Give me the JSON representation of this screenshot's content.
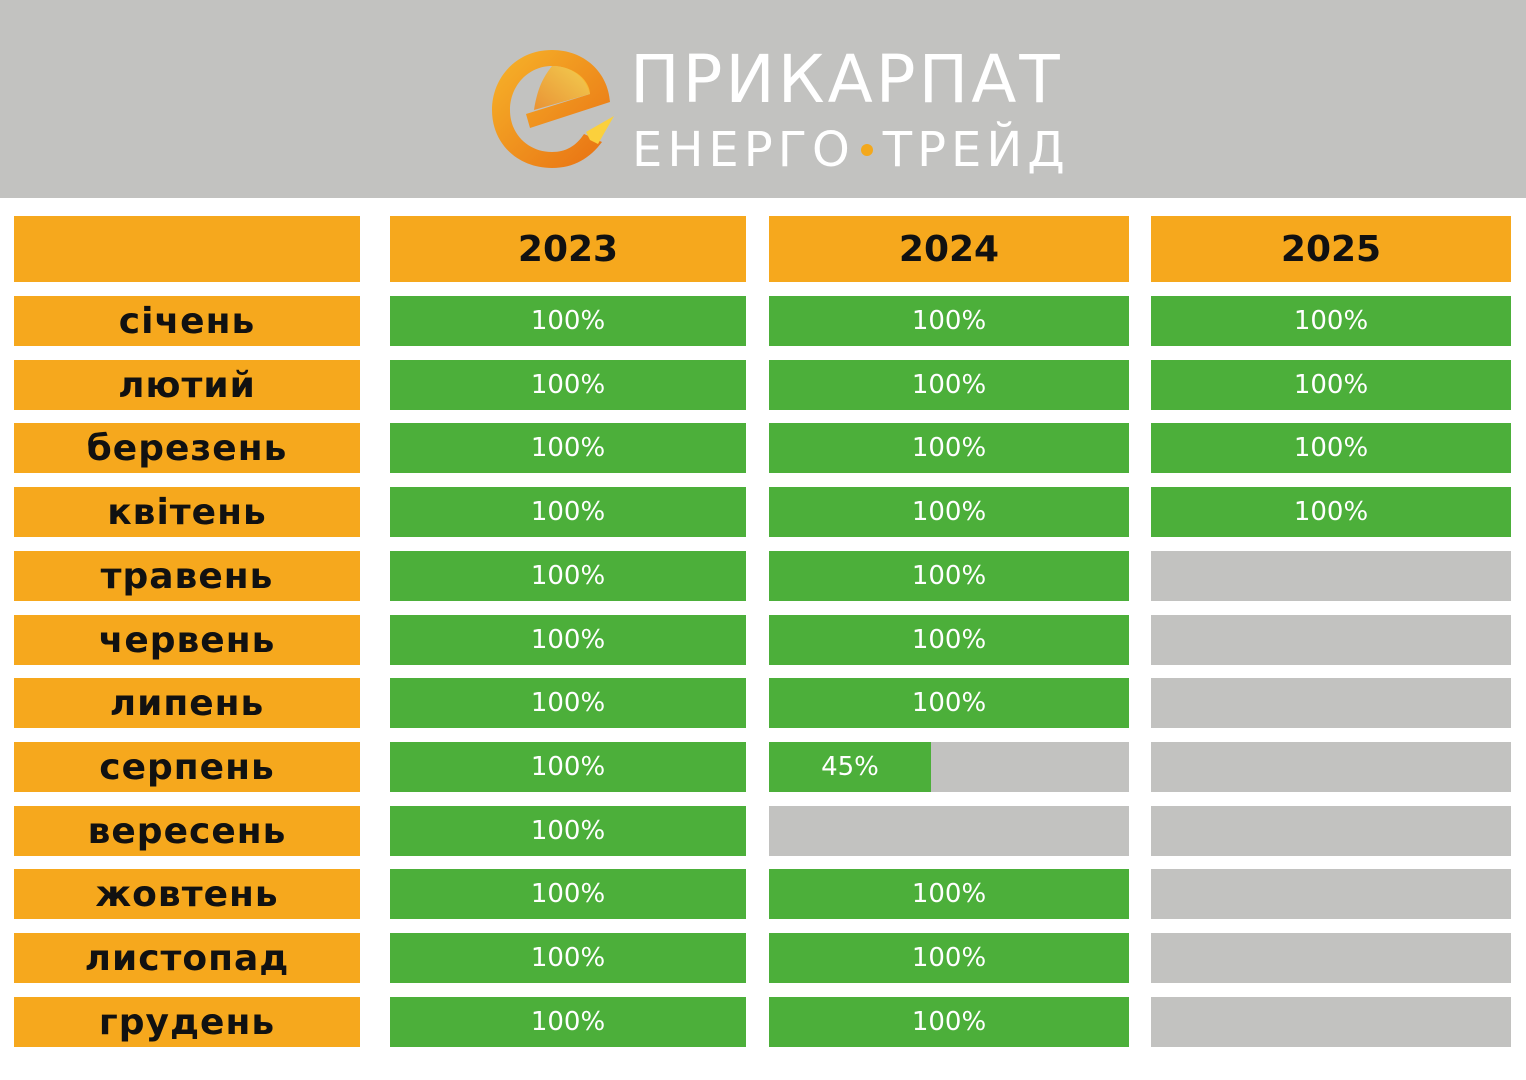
{
  "brand": {
    "line1": "ПРИКАРПАТ",
    "line2_a": "ЕНЕРГО",
    "line2_b": "ТРЕЙД",
    "colors": {
      "orange": "#f6a81d",
      "green": "#4caf3a",
      "grey": "#c2c2c0"
    }
  },
  "chart_data": {
    "type": "table",
    "columns": [
      "2023",
      "2024",
      "2025"
    ],
    "rows": [
      {
        "month": "січень",
        "values": [
          {
            "label": "100%",
            "fill": 100
          },
          {
            "label": "100%",
            "fill": 100
          },
          {
            "label": "100%",
            "fill": 100
          }
        ]
      },
      {
        "month": "лютий",
        "values": [
          {
            "label": "100%",
            "fill": 100
          },
          {
            "label": "100%",
            "fill": 100
          },
          {
            "label": "100%",
            "fill": 100
          }
        ]
      },
      {
        "month": "березень",
        "values": [
          {
            "label": "100%",
            "fill": 100
          },
          {
            "label": "100%",
            "fill": 100
          },
          {
            "label": "100%",
            "fill": 100
          }
        ]
      },
      {
        "month": "квітень",
        "values": [
          {
            "label": "100%",
            "fill": 100
          },
          {
            "label": "100%",
            "fill": 100
          },
          {
            "label": "100%",
            "fill": 100
          }
        ]
      },
      {
        "month": "травень",
        "values": [
          {
            "label": "100%",
            "fill": 100
          },
          {
            "label": "100%",
            "fill": 100
          },
          {
            "label": "",
            "fill": 0
          }
        ]
      },
      {
        "month": "червень",
        "values": [
          {
            "label": "100%",
            "fill": 100
          },
          {
            "label": "100%",
            "fill": 100
          },
          {
            "label": "",
            "fill": 0
          }
        ]
      },
      {
        "month": "липень",
        "values": [
          {
            "label": "100%",
            "fill": 100
          },
          {
            "label": "100%",
            "fill": 100
          },
          {
            "label": "",
            "fill": 0
          }
        ]
      },
      {
        "month": "серпень",
        "values": [
          {
            "label": "100%",
            "fill": 100
          },
          {
            "label": "45%",
            "fill": 45
          },
          {
            "label": "",
            "fill": 0
          }
        ]
      },
      {
        "month": "вересень",
        "values": [
          {
            "label": "100%",
            "fill": 100
          },
          {
            "label": "",
            "fill": 0
          },
          {
            "label": "",
            "fill": 0
          }
        ]
      },
      {
        "month": "жовтень",
        "values": [
          {
            "label": "100%",
            "fill": 100
          },
          {
            "label": "100%",
            "fill": 100
          },
          {
            "label": "",
            "fill": 0
          }
        ]
      },
      {
        "month": "листопад",
        "values": [
          {
            "label": "100%",
            "fill": 100
          },
          {
            "label": "100%",
            "fill": 100
          },
          {
            "label": "",
            "fill": 0
          }
        ]
      },
      {
        "month": "грудень",
        "values": [
          {
            "label": "100%",
            "fill": 100
          },
          {
            "label": "100%",
            "fill": 100
          },
          {
            "label": "",
            "fill": 0
          }
        ]
      }
    ]
  }
}
